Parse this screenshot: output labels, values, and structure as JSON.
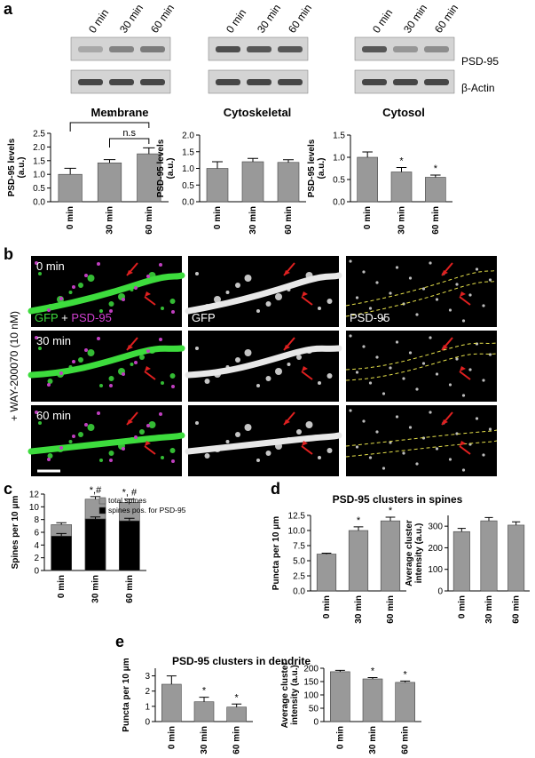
{
  "panel_labels": [
    "a",
    "b",
    "c",
    "d",
    "e"
  ],
  "blots": {
    "times": [
      "0 min",
      "30 min",
      "60 min"
    ],
    "proteins": [
      "PSD-95",
      "β-Actin"
    ],
    "fractions": [
      "Membrane",
      "Cytoskeletal",
      "Cytosol"
    ]
  },
  "images": {
    "times": [
      "0 min",
      "30 min",
      "60 min"
    ],
    "merge_label": [
      "GFP",
      "+",
      "PSD-95"
    ],
    "channels": [
      "GFP",
      "PSD-95"
    ],
    "treatment": "+ WAY-200070 (10 nM)"
  },
  "panel_titles": [
    "PSD-95 clusters in spines",
    "PSD-95 clusters in dendrite"
  ],
  "chart_data": [
    {
      "type": "bar",
      "categories": [
        "0 min",
        "30 min",
        "60 min"
      ],
      "ylabel": [
        "PSD-95 levels",
        "(a.u.)"
      ],
      "series": [
        {
          "color": "#999999",
          "values": [
            1.0,
            1.42,
            1.75
          ],
          "errors": [
            0.22,
            0.12,
            0.22
          ]
        }
      ],
      "ylim": [
        0,
        2.5
      ],
      "yticks": [
        {
          "value": 0,
          "label": "0.0"
        },
        0.5,
        {
          "value": 1,
          "label": "1.0"
        },
        1.5,
        {
          "value": 2,
          "label": "2.0"
        },
        2.5
      ],
      "comparisons": [
        "*",
        "n.s"
      ]
    },
    {
      "type": "bar",
      "categories": [
        "0 min",
        "30 min",
        "60 min"
      ],
      "ylabel": [
        "PSD-95 levels",
        "(a.u.)"
      ],
      "series": [
        {
          "color": "#999999",
          "values": [
            1.0,
            1.2,
            1.18
          ],
          "errors": [
            0.2,
            0.1,
            0.08
          ]
        }
      ],
      "ylim": [
        0,
        2
      ],
      "yticks": [
        {
          "value": 0,
          "label": "0.0"
        },
        0.5,
        {
          "value": 1,
          "label": "1.0"
        },
        1.5,
        {
          "value": 2,
          "label": "2.0"
        }
      ]
    },
    {
      "type": "bar",
      "categories": [
        "0 min",
        "30 min",
        "60 min"
      ],
      "ylabel": [
        "PSD-95 levels",
        "(a.u.)"
      ],
      "series": [
        {
          "color": "#999999",
          "values": [
            1.0,
            0.67,
            0.55
          ],
          "errors": [
            0.12,
            0.1,
            0.05
          ]
        }
      ],
      "ylim": [
        0,
        1.5
      ],
      "yticks": [
        {
          "value": 0,
          "label": "0.0"
        },
        0.5,
        {
          "value": 1,
          "label": "1.0"
        },
        1.5
      ],
      "annotations": [
        null,
        "*",
        "*"
      ]
    },
    {
      "type": "bar",
      "categories": [
        "0 min",
        "30 min",
        "60 min"
      ],
      "ylabel": [
        "Spines per 10 μm"
      ],
      "series": [
        {
          "name": "total spines",
          "color": "#999999",
          "values": [
            7.2,
            11.2,
            10.7
          ],
          "errors": [
            0.3,
            0.4,
            0.5
          ]
        },
        {
          "name": "spines pos. for PSD-95",
          "color": "#000000",
          "values": [
            5.4,
            8.1,
            7.8
          ],
          "errors": [
            0.4,
            0.3,
            0.4
          ]
        }
      ],
      "ylim": [
        0,
        12
      ],
      "yticks": [
        0,
        2,
        4,
        6,
        8,
        10,
        12
      ],
      "annotations": [
        null,
        "*,#",
        "*, #"
      ]
    },
    {
      "type": "bar",
      "categories": [
        "0 min",
        "30 min",
        "60 min"
      ],
      "ylabel": [
        "Puncta per 10 μm"
      ],
      "series": [
        {
          "color": "#999999",
          "values": [
            6.1,
            10.0,
            11.6
          ],
          "errors": [
            0.15,
            0.6,
            0.6
          ]
        }
      ],
      "ylim": [
        0,
        12.5
      ],
      "yticks": [
        {
          "value": 0,
          "label": "0.0"
        },
        2.5,
        {
          "value": 5,
          "label": "5.0"
        },
        7.5,
        {
          "value": 10,
          "label": "10.0"
        },
        12.5
      ],
      "annotations": [
        null,
        "*",
        "*"
      ]
    },
    {
      "type": "bar",
      "categories": [
        "0 min",
        "30 min",
        "60 min"
      ],
      "ylabel": [
        "Average cluster",
        "intensity (a.u.)"
      ],
      "series": [
        {
          "color": "#999999",
          "values": [
            275,
            325,
            305
          ],
          "errors": [
            15,
            15,
            15
          ]
        }
      ],
      "ylim": [
        0,
        350
      ],
      "yticks": [
        0,
        100,
        200,
        300
      ]
    },
    {
      "type": "bar",
      "categories": [
        "0 min",
        "30 min",
        "60 min"
      ],
      "ylabel": [
        "Puncta per 10 μm"
      ],
      "series": [
        {
          "color": "#999999",
          "values": [
            2.45,
            1.3,
            0.95
          ],
          "errors": [
            0.55,
            0.3,
            0.2
          ]
        }
      ],
      "ylim": [
        0,
        3.5
      ],
      "yticks": [
        0,
        1,
        2,
        3
      ],
      "annotations": [
        null,
        "*",
        "*"
      ]
    },
    {
      "type": "bar",
      "categories": [
        "0 min",
        "30 min",
        "60 min"
      ],
      "ylabel": [
        "Average cluster",
        "intensity (a.u.)"
      ],
      "series": [
        {
          "color": "#999999",
          "values": [
            187,
            160,
            147
          ],
          "errors": [
            5,
            5,
            5
          ]
        }
      ],
      "ylim": [
        0,
        200
      ],
      "yticks": [
        0,
        50,
        100,
        150,
        200
      ],
      "annotations": [
        null,
        "*",
        "*"
      ]
    }
  ]
}
